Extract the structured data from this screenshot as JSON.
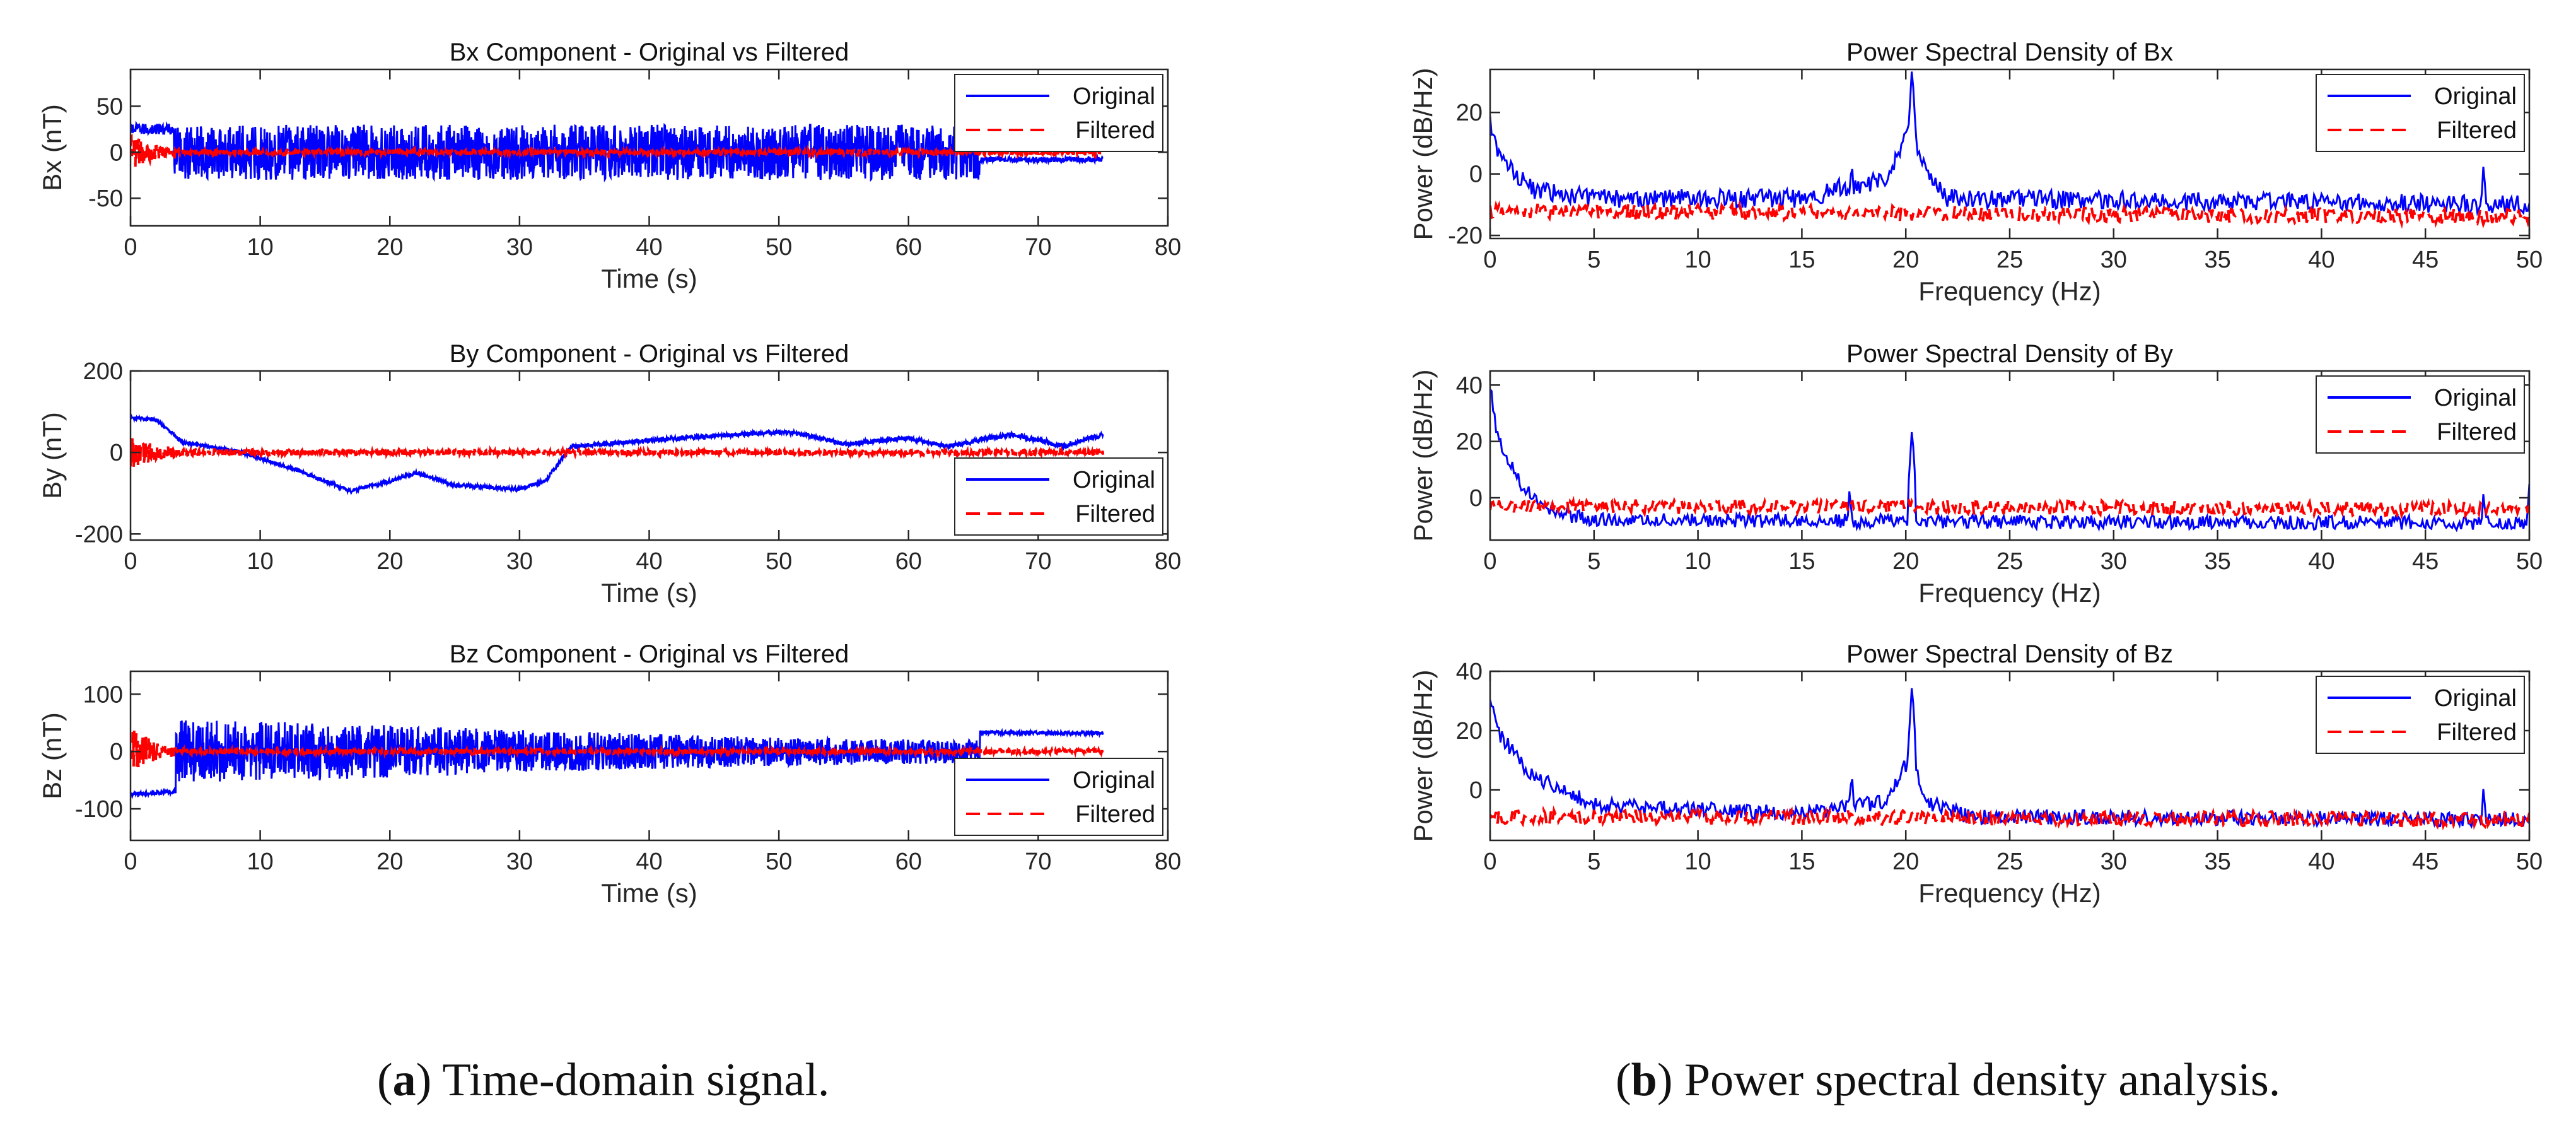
{
  "captions": {
    "a": {
      "letter": "a",
      "text": ") Time-domain signal.",
      "open": "("
    },
    "b": {
      "letter": "b",
      "text": ") Power spectral density analysis.",
      "open": "("
    }
  },
  "colors": {
    "original": "#0000ff",
    "filtered": "#ff0000",
    "axes": "#262626"
  },
  "chart_data": [
    {
      "id": "bx-time",
      "type": "line",
      "title": "Bx Component - Original vs Filtered",
      "xlabel": "Time (s)",
      "ylabel": "Bx (nT)",
      "xlim": [
        0,
        80
      ],
      "ylim": [
        -80,
        90
      ],
      "xticks": [
        0,
        10,
        20,
        30,
        40,
        50,
        60,
        70,
        80
      ],
      "yticks": [
        -50,
        0,
        50
      ],
      "legend": {
        "location": "top-right",
        "entries": [
          "Original",
          "Filtered"
        ]
      },
      "series": [
        {
          "name": "Original",
          "style": "solid",
          "color": "#0000ff",
          "signal": {
            "duration": 75,
            "baseline": [
              [
                0,
                25
              ],
              [
                3.3,
                25
              ],
              [
                3.3,
                0
              ],
              [
                65.5,
                0
              ],
              [
                65.5,
                -8
              ],
              [
                75,
                -8
              ]
            ],
            "noise": [
              [
                0,
                6
              ],
              [
                3.3,
                6
              ],
              [
                3.3,
                30
              ],
              [
                65.5,
                30
              ],
              [
                65.5,
                3
              ],
              [
                75,
                3
              ]
            ]
          }
        },
        {
          "name": "Filtered",
          "style": "dashed",
          "color": "#ff0000",
          "signal": {
            "duration": 75,
            "baseline": [
              [
                0,
                0
              ],
              [
                75,
                0
              ]
            ],
            "noise": [
              [
                0,
                18
              ],
              [
                2,
                8
              ],
              [
                4,
                3
              ],
              [
                75,
                3
              ]
            ]
          }
        }
      ]
    },
    {
      "id": "by-time",
      "type": "line",
      "title": "By Component - Original vs Filtered",
      "xlabel": "Time (s)",
      "ylabel": "By (nT)",
      "xlim": [
        0,
        80
      ],
      "ylim": [
        -215,
        200
      ],
      "xticks": [
        0,
        10,
        20,
        30,
        40,
        50,
        60,
        70,
        80
      ],
      "yticks": [
        -200,
        0,
        200
      ],
      "legend": {
        "location": "bottom-right",
        "entries": [
          "Original",
          "Filtered"
        ]
      },
      "series": [
        {
          "name": "Original",
          "style": "solid",
          "color": "#0000ff",
          "signal": {
            "duration": 75,
            "baseline": [
              [
                0,
                85
              ],
              [
                2,
                80
              ],
              [
                4,
                25
              ],
              [
                8,
                5
              ],
              [
                10,
                -15
              ],
              [
                13,
                -45
              ],
              [
                17,
                -95
              ],
              [
                20,
                -70
              ],
              [
                22,
                -50
              ],
              [
                25,
                -80
              ],
              [
                30,
                -90
              ],
              [
                32,
                -70
              ],
              [
                34,
                15
              ],
              [
                40,
                30
              ],
              [
                45,
                40
              ],
              [
                50,
                50
              ],
              [
                52,
                45
              ],
              [
                55,
                20
              ],
              [
                60,
                35
              ],
              [
                63,
                15
              ],
              [
                68,
                45
              ],
              [
                72,
                15
              ],
              [
                75,
                45
              ]
            ],
            "noise": [
              [
                0,
                4
              ],
              [
                75,
                6
              ]
            ]
          }
        },
        {
          "name": "Filtered",
          "style": "dashed",
          "color": "#ff0000",
          "signal": {
            "duration": 75,
            "baseline": [
              [
                0,
                0
              ],
              [
                75,
                0
              ]
            ],
            "noise": [
              [
                0,
                40
              ],
              [
                2,
                20
              ],
              [
                4,
                8
              ],
              [
                75,
                6
              ]
            ]
          }
        }
      ]
    },
    {
      "id": "bz-time",
      "type": "line",
      "title": "Bz Component - Original vs Filtered",
      "xlabel": "Time (s)",
      "ylabel": "Bz (nT)",
      "xlim": [
        0,
        80
      ],
      "ylim": [
        -155,
        140
      ],
      "xticks": [
        0,
        10,
        20,
        30,
        40,
        50,
        60,
        70,
        80
      ],
      "yticks": [
        -100,
        0,
        100
      ],
      "legend": {
        "location": "bottom-right",
        "entries": [
          "Original",
          "Filtered"
        ]
      },
      "series": [
        {
          "name": "Original",
          "style": "solid",
          "color": "#0000ff",
          "signal": {
            "duration": 75,
            "baseline": [
              [
                0,
                -75
              ],
              [
                3.5,
                -70
              ],
              [
                3.5,
                0
              ],
              [
                65.5,
                0
              ],
              [
                65.5,
                33
              ],
              [
                75,
                32
              ]
            ],
            "noise": [
              [
                0,
                4
              ],
              [
                3.5,
                4
              ],
              [
                3.5,
                55
              ],
              [
                15,
                50
              ],
              [
                33,
                35
              ],
              [
                50,
                25
              ],
              [
                65.5,
                20
              ],
              [
                65.5,
                3
              ],
              [
                75,
                3
              ]
            ]
          }
        },
        {
          "name": "Filtered",
          "style": "dashed",
          "color": "#ff0000",
          "signal": {
            "duration": 75,
            "baseline": [
              [
                0,
                0
              ],
              [
                75,
                0
              ]
            ],
            "noise": [
              [
                0,
                45
              ],
              [
                2,
                15
              ],
              [
                4,
                5
              ],
              [
                75,
                4
              ]
            ]
          }
        }
      ]
    },
    {
      "id": "bx-psd",
      "type": "line",
      "title": "Power Spectral Density of Bx",
      "xlabel": "Frequency (Hz)",
      "ylabel": "Power (dB/Hz)",
      "xlim": [
        0,
        50
      ],
      "ylim": [
        -21,
        34
      ],
      "xticks": [
        0,
        5,
        10,
        15,
        20,
        25,
        30,
        35,
        40,
        45,
        50
      ],
      "yticks": [
        -20,
        0,
        20
      ],
      "legend": {
        "location": "top-right",
        "entries": [
          "Original",
          "Filtered"
        ]
      },
      "series": [
        {
          "name": "Original",
          "style": "solid",
          "color": "#0000ff",
          "signal": {
            "duration": 50,
            "baseline": [
              [
                0,
                17
              ],
              [
                0.5,
                5
              ],
              [
                2,
                -5
              ],
              [
                5,
                -8
              ],
              [
                15,
                -8
              ],
              [
                19,
                -2
              ],
              [
                20.3,
                15
              ],
              [
                21,
                0
              ],
              [
                22,
                -8
              ],
              [
                50,
                -10
              ]
            ],
            "noise": [
              [
                0,
                3
              ],
              [
                50,
                3
              ]
            ],
            "peaks": [
              [
                20.3,
                35
              ],
              [
                17.4,
                5
              ],
              [
                47.8,
                4
              ],
              [
                16.8,
                0
              ]
            ]
          }
        },
        {
          "name": "Filtered",
          "style": "dashed",
          "color": "#ff0000",
          "signal": {
            "duration": 50,
            "baseline": [
              [
                0,
                -12
              ],
              [
                50,
                -14
              ]
            ],
            "noise": [
              [
                0,
                2.5
              ],
              [
                50,
                2.5
              ]
            ],
            "peaks": []
          }
        }
      ]
    },
    {
      "id": "by-psd",
      "type": "line",
      "title": "Power Spectral Density of By",
      "xlabel": "Frequency (Hz)",
      "ylabel": "Power (dB/Hz)",
      "xlim": [
        0,
        50
      ],
      "ylim": [
        -15,
        45
      ],
      "xticks": [
        0,
        5,
        10,
        15,
        20,
        25,
        30,
        35,
        40,
        45,
        50
      ],
      "yticks": [
        0,
        20,
        40
      ],
      "legend": {
        "location": "top-right",
        "entries": [
          "Original",
          "Filtered"
        ]
      },
      "series": [
        {
          "name": "Original",
          "style": "solid",
          "color": "#0000ff",
          "signal": {
            "duration": 50,
            "baseline": [
              [
                0,
                40
              ],
              [
                0.4,
                20
              ],
              [
                1.5,
                5
              ],
              [
                3,
                -5
              ],
              [
                5,
                -8
              ],
              [
                50,
                -9
              ]
            ],
            "noise": [
              [
                0,
                2.5
              ],
              [
                50,
                2.5
              ]
            ],
            "peaks": [
              [
                20.3,
                25
              ],
              [
                17.3,
                4
              ],
              [
                47.8,
                3
              ],
              [
                50,
                5
              ]
            ]
          }
        },
        {
          "name": "Filtered",
          "style": "dashed",
          "color": "#ff0000",
          "signal": {
            "duration": 50,
            "baseline": [
              [
                0,
                -3
              ],
              [
                50,
                -4
              ]
            ],
            "noise": [
              [
                0,
                2.5
              ],
              [
                50,
                2.5
              ]
            ],
            "peaks": []
          }
        }
      ]
    },
    {
      "id": "bz-psd",
      "type": "line",
      "title": "Power Spectral Density of Bz",
      "xlabel": "Frequency (Hz)",
      "ylabel": "Power (dB/Hz)",
      "xlim": [
        0,
        50
      ],
      "ylim": [
        -17,
        40
      ],
      "xticks": [
        0,
        5,
        10,
        15,
        20,
        25,
        30,
        35,
        40,
        45,
        50
      ],
      "yticks": [
        0,
        20,
        40
      ],
      "legend": {
        "location": "top-right",
        "entries": [
          "Original",
          "Filtered"
        ]
      },
      "series": [
        {
          "name": "Original",
          "style": "solid",
          "color": "#0000ff",
          "signal": {
            "duration": 50,
            "baseline": [
              [
                0,
                30
              ],
              [
                0.5,
                18
              ],
              [
                2,
                5
              ],
              [
                5,
                -5
              ],
              [
                15,
                -8
              ],
              [
                19,
                -4
              ],
              [
                20.3,
                12
              ],
              [
                21,
                -4
              ],
              [
                23,
                -9
              ],
              [
                50,
                -10
              ]
            ],
            "noise": [
              [
                0,
                2.5
              ],
              [
                50,
                2.5
              ]
            ],
            "peaks": [
              [
                20.3,
                36
              ],
              [
                17.4,
                7
              ],
              [
                47.8,
                2
              ]
            ]
          }
        },
        {
          "name": "Filtered",
          "style": "dashed",
          "color": "#ff0000",
          "signal": {
            "duration": 50,
            "baseline": [
              [
                0,
                -9
              ],
              [
                50,
                -10
              ]
            ],
            "noise": [
              [
                0,
                2.5
              ],
              [
                50,
                2.5
              ]
            ],
            "peaks": []
          }
        }
      ]
    }
  ]
}
